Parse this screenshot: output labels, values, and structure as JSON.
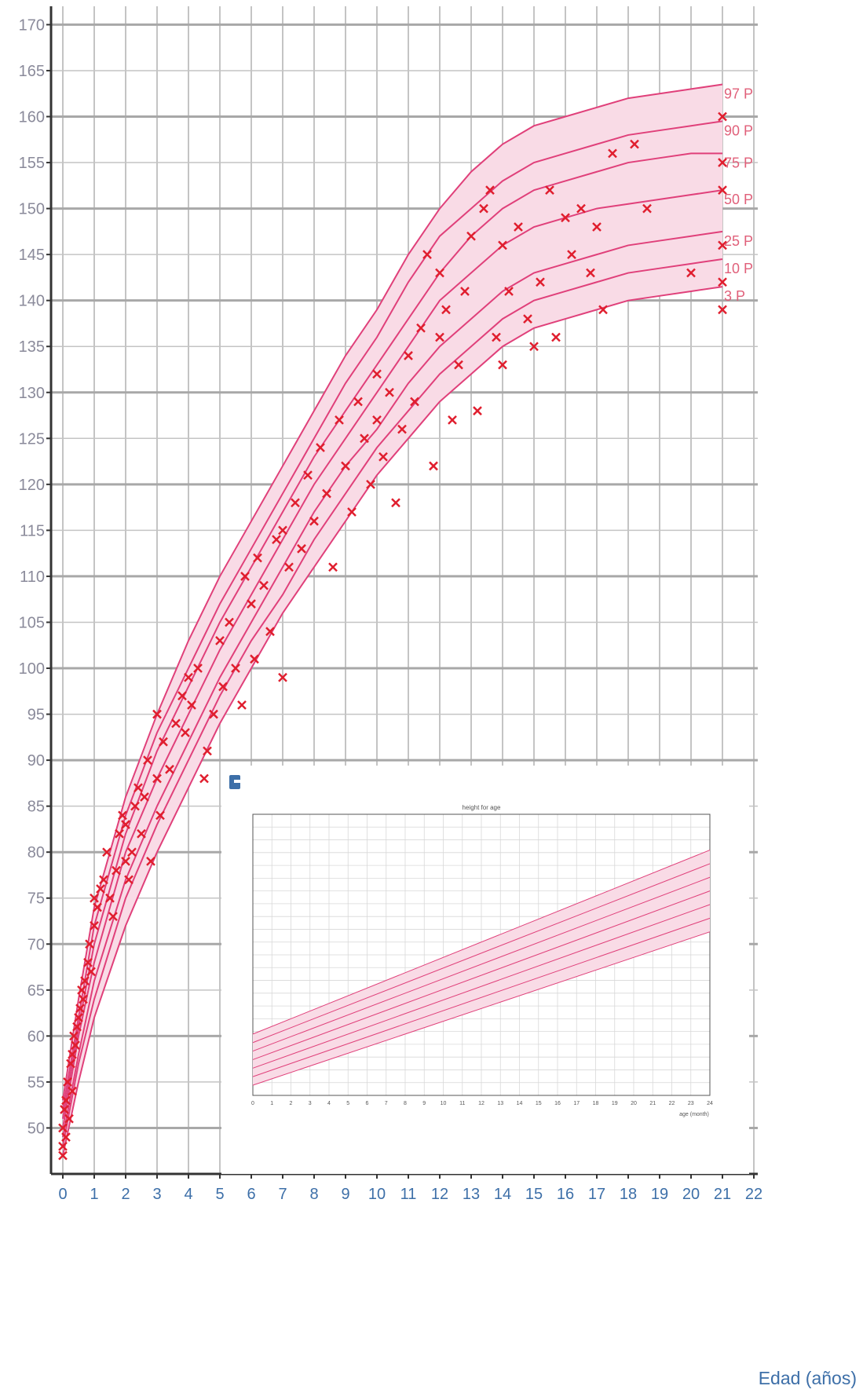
{
  "chart_data": [
    {
      "type": "line",
      "xlabel": "Edad (años)",
      "ylabel": "",
      "xlim": [
        0,
        22
      ],
      "ylim": [
        45,
        172
      ],
      "x_ticks": [
        "0",
        "1",
        "2",
        "3",
        "4",
        "5",
        "6",
        "7",
        "8",
        "9",
        "10",
        "11",
        "12",
        "13",
        "14",
        "15",
        "16",
        "17",
        "18",
        "19",
        "20",
        "21",
        "22"
      ],
      "y_ticks": [
        "50",
        "55",
        "60",
        "65",
        "70",
        "75",
        "80",
        "85",
        "90",
        "95",
        "100",
        "105",
        "110",
        "115",
        "120",
        "125",
        "130",
        "135",
        "140",
        "145",
        "150",
        "155",
        "160",
        "165",
        "170"
      ],
      "grid": true,
      "line_color": "#e0407a",
      "band_color": "#f9dbe6",
      "marker_color": "#e01e2e",
      "series": [
        {
          "name": "97 P",
          "x": [
            0,
            0.5,
            1,
            2,
            3,
            4,
            5,
            6,
            7,
            8,
            9,
            10,
            11,
            12,
            13,
            14,
            15,
            16,
            17,
            18,
            19,
            20,
            21
          ],
          "values": [
            53,
            64,
            74,
            86,
            95,
            103,
            110,
            116,
            122,
            128,
            134,
            139,
            145,
            150,
            154,
            157,
            159,
            160,
            161,
            162,
            162.5,
            163,
            163.5
          ]
        },
        {
          "name": "90 P",
          "x": [
            0,
            0.5,
            1,
            2,
            3,
            4,
            5,
            6,
            7,
            8,
            9,
            10,
            11,
            12,
            13,
            14,
            15,
            16,
            17,
            18,
            19,
            20,
            21
          ],
          "values": [
            52,
            62,
            72,
            84,
            93,
            100,
            107,
            113,
            119,
            125,
            131,
            136,
            142,
            147,
            150,
            153,
            155,
            156,
            157,
            158,
            158.5,
            159,
            159.5
          ]
        },
        {
          "name": "75 P",
          "x": [
            0,
            0.5,
            1,
            2,
            3,
            4,
            5,
            6,
            7,
            8,
            9,
            10,
            11,
            12,
            13,
            14,
            15,
            16,
            17,
            18,
            19,
            20,
            21
          ],
          "values": [
            51,
            61,
            70,
            82,
            91,
            98,
            105,
            111,
            117,
            123,
            128,
            133,
            138,
            143,
            147,
            150,
            152,
            153,
            154,
            155,
            155.5,
            156,
            156
          ]
        },
        {
          "name": "50 P",
          "x": [
            0,
            0.5,
            1,
            2,
            3,
            4,
            5,
            6,
            7,
            8,
            9,
            10,
            11,
            12,
            13,
            14,
            15,
            16,
            17,
            18,
            19,
            20,
            21
          ],
          "values": [
            50,
            60,
            68,
            80,
            88,
            95,
            102,
            108,
            114,
            120,
            125,
            130,
            135,
            140,
            143,
            146,
            148,
            149,
            150,
            150.5,
            151,
            151.5,
            152
          ]
        },
        {
          "name": "25 P",
          "x": [
            0,
            0.5,
            1,
            2,
            3,
            4,
            5,
            6,
            7,
            8,
            9,
            10,
            11,
            12,
            13,
            14,
            15,
            16,
            17,
            18,
            19,
            20,
            21
          ],
          "values": [
            49,
            58,
            66,
            77,
            85,
            92,
            99,
            105,
            111,
            117,
            122,
            126,
            131,
            135,
            138,
            141,
            143,
            144,
            145,
            146,
            146.5,
            147,
            147.5
          ]
        },
        {
          "name": "10 P",
          "x": [
            0,
            0.5,
            1,
            2,
            3,
            4,
            5,
            6,
            7,
            8,
            9,
            10,
            11,
            12,
            13,
            14,
            15,
            16,
            17,
            18,
            19,
            20,
            21
          ],
          "values": [
            48,
            57,
            64,
            75,
            83,
            90,
            97,
            103,
            108,
            114,
            119,
            124,
            128,
            132,
            135,
            138,
            140,
            141,
            142,
            143,
            143.5,
            144,
            144.5
          ]
        },
        {
          "name": "3 P",
          "x": [
            0,
            0.5,
            1,
            2,
            3,
            4,
            5,
            6,
            7,
            8,
            9,
            10,
            11,
            12,
            13,
            14,
            15,
            16,
            17,
            18,
            19,
            20,
            21
          ],
          "values": [
            47,
            55,
            62,
            72,
            80,
            87,
            94,
            100,
            106,
            111,
            116,
            121,
            125,
            129,
            132,
            135,
            137,
            138,
            139,
            140,
            140.5,
            141,
            141.5
          ]
        }
      ],
      "points": [
        [
          0,
          47
        ],
        [
          0,
          48
        ],
        [
          0,
          50
        ],
        [
          0.05,
          52
        ],
        [
          0.1,
          53
        ],
        [
          0.1,
          49
        ],
        [
          0.15,
          55
        ],
        [
          0.2,
          51
        ],
        [
          0.25,
          57
        ],
        [
          0.3,
          58
        ],
        [
          0.3,
          54
        ],
        [
          0.35,
          60
        ],
        [
          0.4,
          59
        ],
        [
          0.45,
          61
        ],
        [
          0.5,
          62
        ],
        [
          0.55,
          63
        ],
        [
          0.6,
          65
        ],
        [
          0.65,
          64
        ],
        [
          0.7,
          66
        ],
        [
          0.8,
          68
        ],
        [
          0.85,
          70
        ],
        [
          0.9,
          67
        ],
        [
          1,
          72
        ],
        [
          1,
          75
        ],
        [
          1.1,
          74
        ],
        [
          1.2,
          76
        ],
        [
          1.3,
          77
        ],
        [
          1.4,
          80
        ],
        [
          1.5,
          75
        ],
        [
          1.6,
          73
        ],
        [
          1.7,
          78
        ],
        [
          1.8,
          82
        ],
        [
          1.9,
          84
        ],
        [
          2,
          79
        ],
        [
          2,
          83
        ],
        [
          2.1,
          77
        ],
        [
          2.2,
          80
        ],
        [
          2.3,
          85
        ],
        [
          2.4,
          87
        ],
        [
          2.5,
          82
        ],
        [
          2.6,
          86
        ],
        [
          2.7,
          90
        ],
        [
          2.8,
          79
        ],
        [
          3,
          95
        ],
        [
          3,
          88
        ],
        [
          3.1,
          84
        ],
        [
          3.2,
          92
        ],
        [
          3.4,
          89
        ],
        [
          3.6,
          94
        ],
        [
          3.8,
          97
        ],
        [
          3.9,
          93
        ],
        [
          4,
          99
        ],
        [
          4.1,
          96
        ],
        [
          4.3,
          100
        ],
        [
          4.5,
          88
        ],
        [
          4.6,
          91
        ],
        [
          4.8,
          95
        ],
        [
          5,
          103
        ],
        [
          5.1,
          98
        ],
        [
          5.3,
          105
        ],
        [
          5.5,
          100
        ],
        [
          5.7,
          96
        ],
        [
          5.8,
          110
        ],
        [
          6,
          107
        ],
        [
          6.1,
          101
        ],
        [
          6.2,
          112
        ],
        [
          6.4,
          109
        ],
        [
          6.6,
          104
        ],
        [
          6.8,
          114
        ],
        [
          7,
          99
        ],
        [
          7,
          115
        ],
        [
          7.2,
          111
        ],
        [
          7.4,
          118
        ],
        [
          7.6,
          113
        ],
        [
          7.8,
          121
        ],
        [
          8,
          116
        ],
        [
          8.2,
          124
        ],
        [
          8.4,
          119
        ],
        [
          8.6,
          111
        ],
        [
          8.8,
          127
        ],
        [
          9,
          122
        ],
        [
          9.2,
          117
        ],
        [
          9.4,
          129
        ],
        [
          9.6,
          125
        ],
        [
          9.8,
          120
        ],
        [
          10,
          132
        ],
        [
          10,
          127
        ],
        [
          10.2,
          123
        ],
        [
          10.4,
          130
        ],
        [
          10.6,
          118
        ],
        [
          10.8,
          126
        ],
        [
          11,
          134
        ],
        [
          11.2,
          129
        ],
        [
          11.4,
          137
        ],
        [
          11.6,
          145
        ],
        [
          11.8,
          122
        ],
        [
          12,
          136
        ],
        [
          12,
          143
        ],
        [
          12.2,
          139
        ],
        [
          12.4,
          127
        ],
        [
          12.6,
          133
        ],
        [
          12.8,
          141
        ],
        [
          13,
          147
        ],
        [
          13.2,
          128
        ],
        [
          13.4,
          150
        ],
        [
          13.6,
          152
        ],
        [
          13.8,
          136
        ],
        [
          14,
          146
        ],
        [
          14,
          133
        ],
        [
          14.2,
          141
        ],
        [
          14.5,
          148
        ],
        [
          14.8,
          138
        ],
        [
          15,
          135
        ],
        [
          15.2,
          142
        ],
        [
          15.5,
          152
        ],
        [
          15.7,
          136
        ],
        [
          16,
          149
        ],
        [
          16.2,
          145
        ],
        [
          16.5,
          150
        ],
        [
          16.8,
          143
        ],
        [
          17,
          148
        ],
        [
          17.2,
          139
        ],
        [
          17.5,
          156
        ],
        [
          18.2,
          157
        ],
        [
          18.6,
          150
        ],
        [
          20,
          143
        ],
        [
          21,
          139
        ],
        [
          21,
          142
        ],
        [
          21,
          146
        ],
        [
          21,
          152
        ],
        [
          21,
          155
        ],
        [
          21,
          160
        ]
      ]
    },
    {
      "type": "line",
      "title": "height for age",
      "xlabel": "age (month)",
      "ylabel": "",
      "xlim": [
        0,
        24
      ],
      "ylim": [
        45,
        100
      ],
      "series_count": 7,
      "grid": true
    }
  ],
  "colors": {
    "grid": "#c4c4c4",
    "grid_major": "#a8a8a8",
    "axis": "#333333",
    "inset_bg": "#ffffff",
    "inset_logo": "#3d6fa8"
  }
}
